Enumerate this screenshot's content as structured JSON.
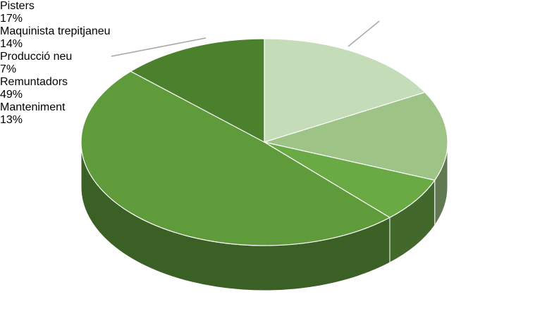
{
  "chart_data": {
    "type": "pie",
    "categories": [
      "Pisters",
      "Maquinista trepitjaneu",
      "Producció neu",
      "Remuntadors",
      "Manteniment"
    ],
    "values": [
      17,
      14,
      7,
      49,
      13
    ],
    "value_labels": [
      "17%",
      "14%",
      "7%",
      "49%",
      "13%"
    ],
    "colors": [
      "#c5dcb8",
      "#9dc386",
      "#6aaa45",
      "#5f9b3b",
      "#4b802d"
    ]
  }
}
